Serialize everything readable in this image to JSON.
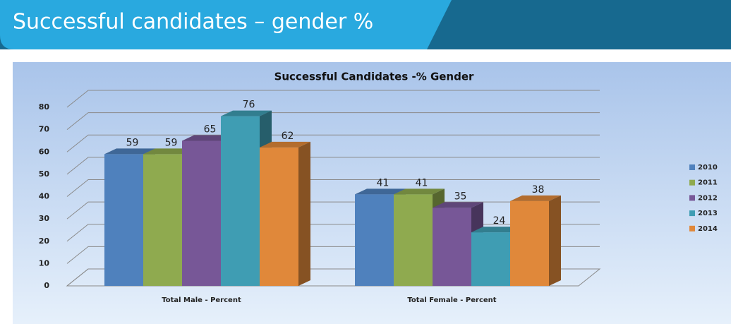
{
  "slide_title": "Successful candidates – gender %",
  "chart_data": {
    "type": "bar3d",
    "title": "Successful Candidates -% Gender",
    "categories": [
      "Total Male - Percent",
      "Total Female - Percent"
    ],
    "series": [
      {
        "name": "2010",
        "color": "#4f81bd",
        "values": [
          59,
          41
        ]
      },
      {
        "name": "2011",
        "color": "#8faa4f",
        "values": [
          59,
          41
        ]
      },
      {
        "name": "2012",
        "color": "#775797",
        "values": [
          65,
          35
        ]
      },
      {
        "name": "2013",
        "color": "#3f9db3",
        "values": [
          76,
          24
        ]
      },
      {
        "name": "2014",
        "color": "#e0883a",
        "values": [
          62,
          38
        ]
      }
    ],
    "ylim": [
      0,
      80
    ],
    "yticks": [
      0,
      10,
      20,
      30,
      40,
      50,
      60,
      70,
      80
    ],
    "grid": true,
    "legend": "right"
  }
}
